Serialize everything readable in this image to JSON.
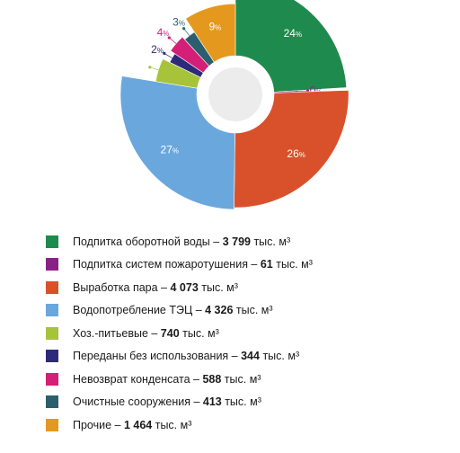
{
  "chart_data": {
    "type": "pie",
    "style": "radial-bar-donut",
    "slices": [
      {
        "name": "Подпитка оборотной воды",
        "value": 3799,
        "percent": "24",
        "color": "#1f8a4d",
        "label_color": "#ffffff"
      },
      {
        "name": "Подпитка систем пожаротушения",
        "value": 61,
        "percent": "0",
        "color": "#8a2286",
        "label_color": "#8a2286"
      },
      {
        "name": "Выработка пара",
        "value": 4073,
        "percent": "26",
        "color": "#d9512b",
        "label_color": "#ffffff"
      },
      {
        "name": "Водопотребление ТЭЦ",
        "value": 4326,
        "percent": "27",
        "color": "#6aa7dd",
        "label_color": "#ffffff"
      },
      {
        "name": "Хоз.-питьевые",
        "value": 740,
        "percent": "5",
        "color": "#a6c33a",
        "label_color": "#ffffff"
      },
      {
        "name": "Переданы без использования",
        "value": 344,
        "percent": "2",
        "color": "#2e2a7a",
        "label_color": "#2e2a7a"
      },
      {
        "name": "Невозврат конденсата",
        "value": 588,
        "percent": "4",
        "color": "#d41f78",
        "label_color": "#d41f78"
      },
      {
        "name": "Очистные сооружения",
        "value": 413,
        "percent": "3",
        "color": "#2b5f6d",
        "label_color": "#2b5f6d"
      },
      {
        "name": "Прочие",
        "value": 1464,
        "percent": "9",
        "color": "#e5981e",
        "label_color": "#ffffff"
      }
    ],
    "legend_placement": "bottom-left"
  },
  "legend": {
    "separator": " – ",
    "unit": " тыс. м³",
    "items": [
      {
        "label": "Подпитка оборотной воды",
        "value": "3 799"
      },
      {
        "label": "Подпитка систем пожаротушения",
        "value": "61"
      },
      {
        "label": "Выработка пара",
        "value": "4 073"
      },
      {
        "label": "Водопотребление ТЭЦ",
        "value": "4 326"
      },
      {
        "label": "Хоз.-питьевые",
        "value": "740"
      },
      {
        "label": "Переданы без использования",
        "value": "344"
      },
      {
        "label": "Невозврат конденсата",
        "value": "588"
      },
      {
        "label": "Очистные сооружения",
        "value": "413"
      },
      {
        "label": "Прочие",
        "value": "1 464"
      }
    ]
  },
  "percent_sign": "%"
}
